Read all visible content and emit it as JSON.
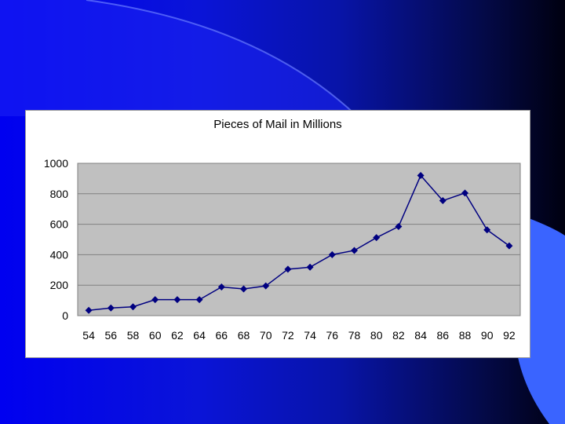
{
  "colors": {
    "background_start": "#0000f0",
    "background_end": "#000010",
    "accent_shape": "#3a64ff",
    "plot_area": "#c0c0c0",
    "series_line": "#000080"
  },
  "chart_data": {
    "type": "line",
    "title": "Pieces of Mail in Millions",
    "xlabel": "",
    "ylabel": "",
    "categories": [
      "54",
      "56",
      "58",
      "60",
      "62",
      "64",
      "66",
      "68",
      "70",
      "72",
      "74",
      "76",
      "78",
      "80",
      "82",
      "84",
      "86",
      "88",
      "90",
      "92"
    ],
    "series": [
      {
        "values": [
          35,
          50,
          58,
          105,
          105,
          105,
          188,
          175,
          195,
          305,
          318,
          400,
          428,
          512,
          585,
          920,
          755,
          805,
          563,
          458
        ]
      }
    ],
    "ylim": [
      0,
      1000
    ],
    "yticks": [
      0,
      200,
      400,
      600,
      800,
      1000
    ],
    "grid": true,
    "legend": "none",
    "marker": "diamond"
  }
}
